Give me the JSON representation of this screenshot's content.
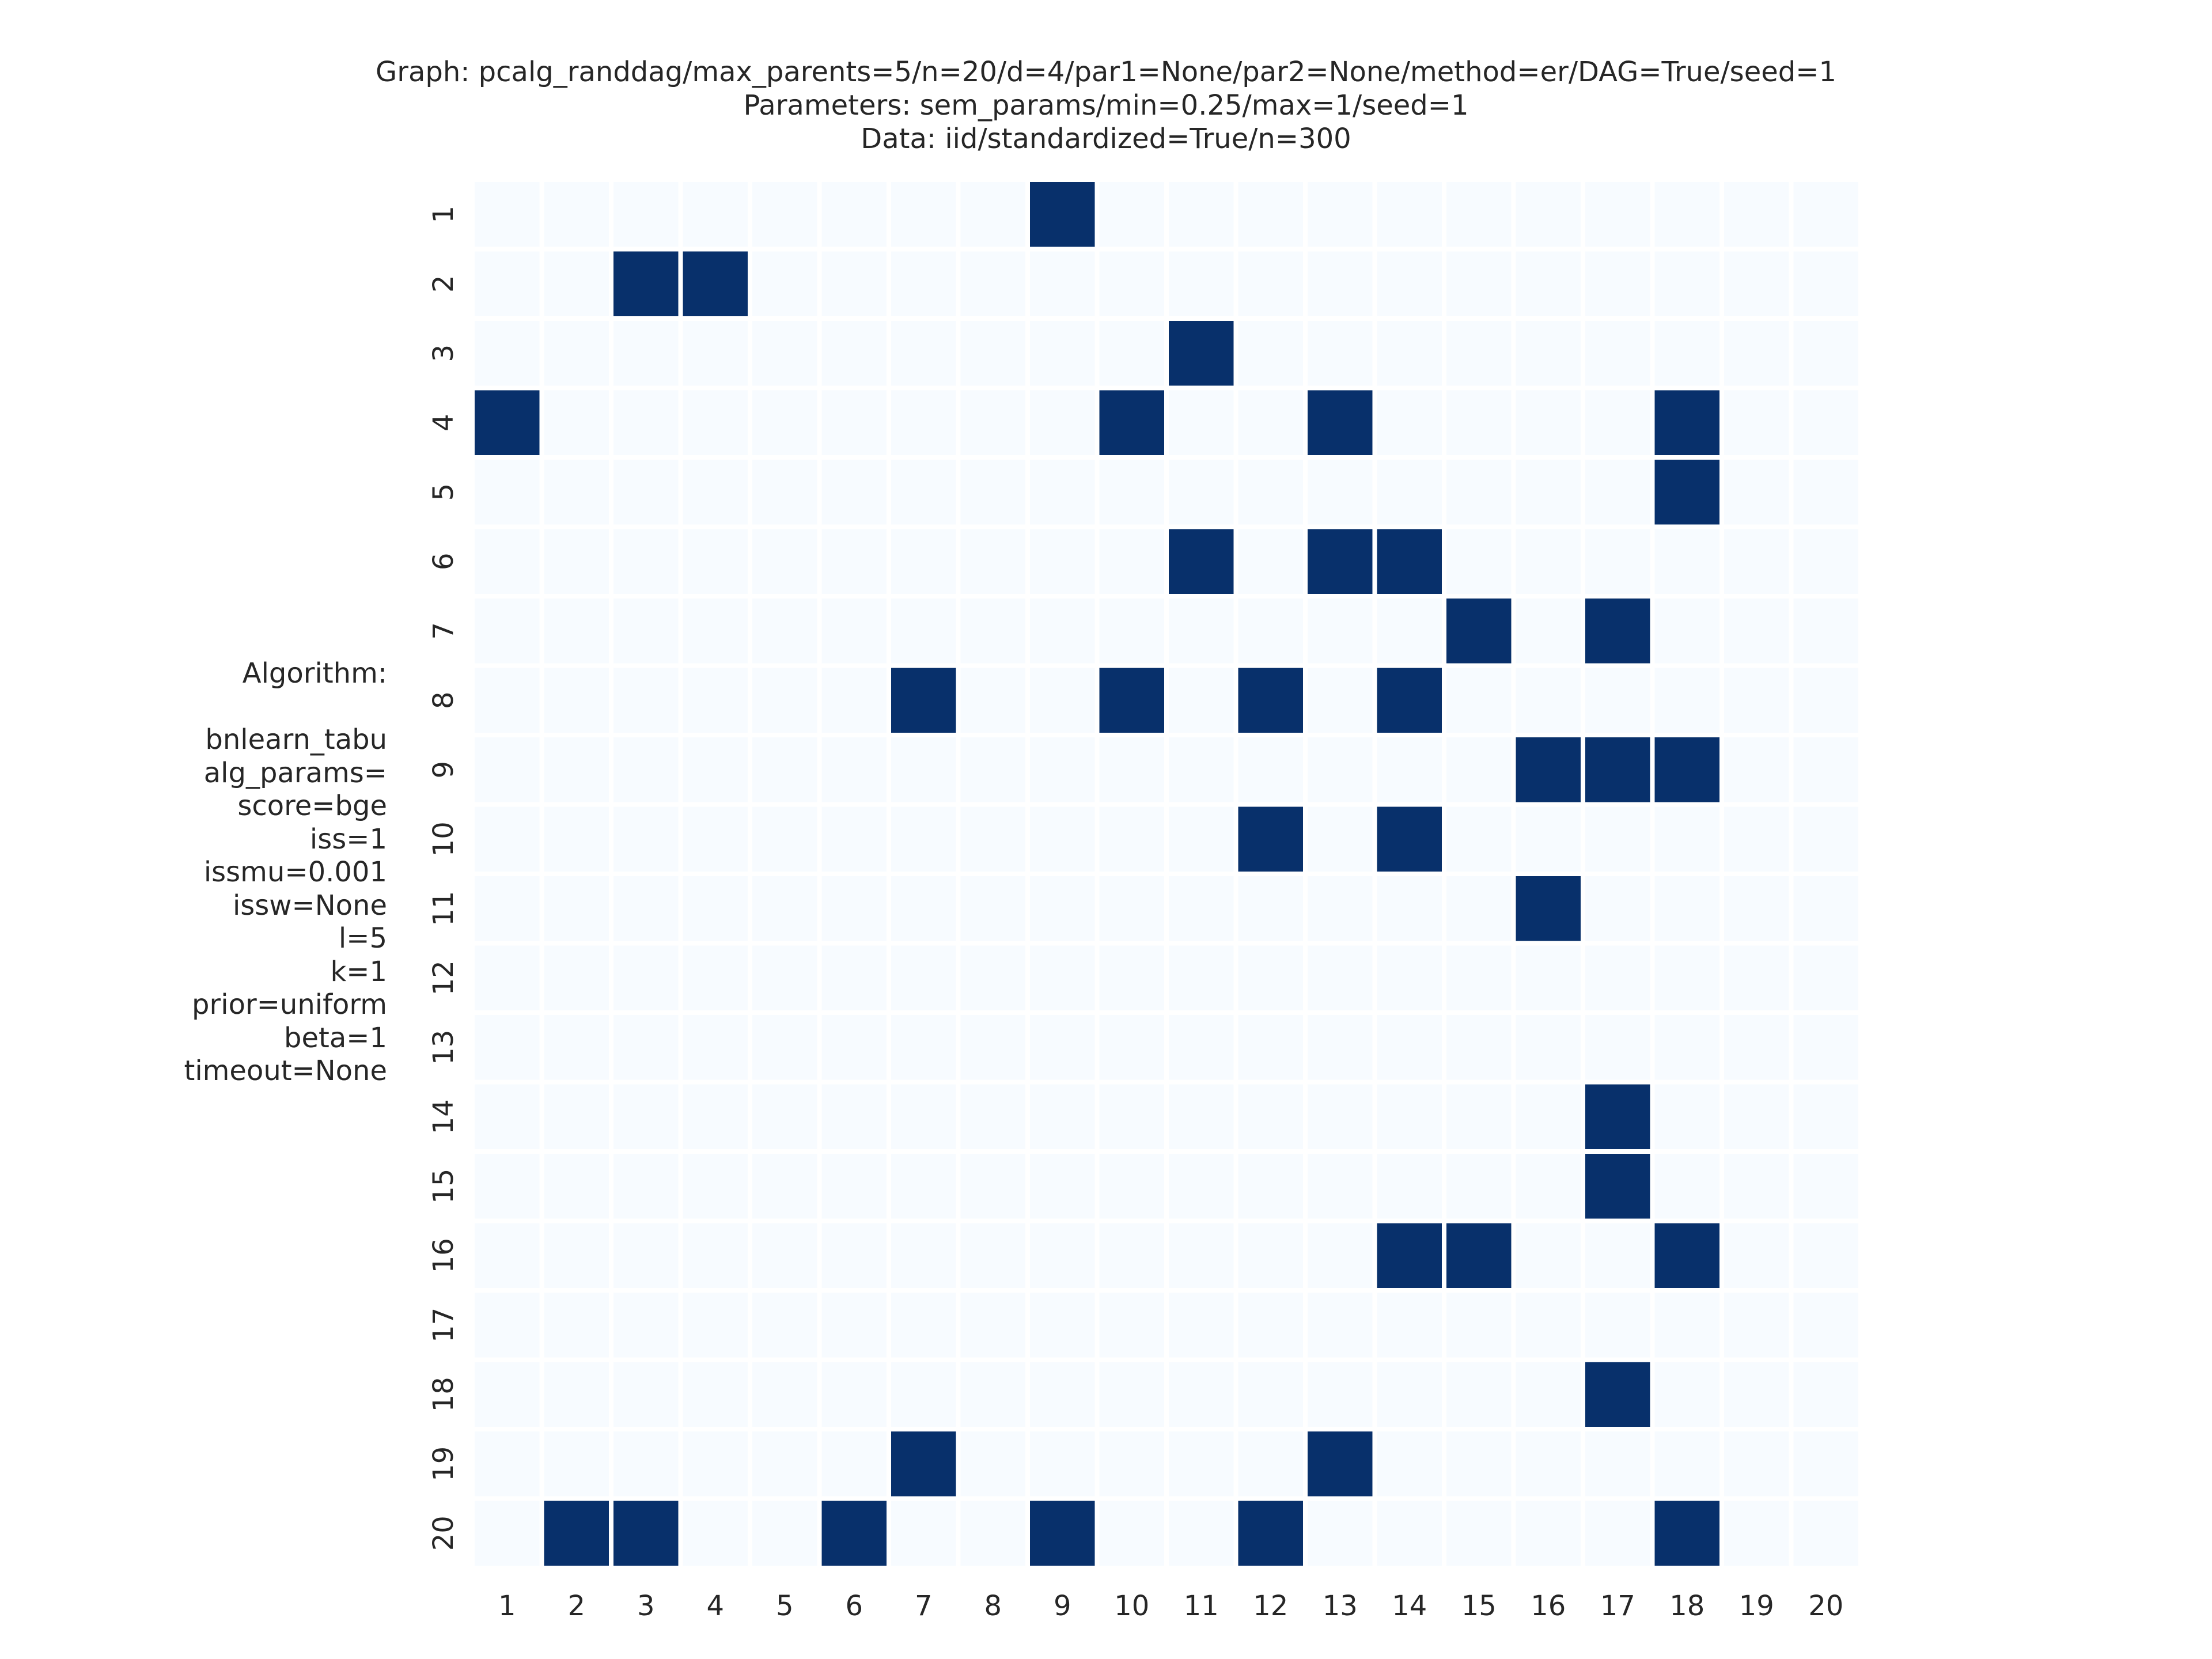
{
  "title_lines": [
    "Graph: pcalg_randdag/max_parents=5/n=20/d=4/par1=None/par2=None/method=er/DAG=True/seed=1",
    "Parameters: sem_params/min=0.25/max=1/seed=1",
    "Data: iid/standardized=True/n=300"
  ],
  "algorithm_lines": [
    "Algorithm:",
    "",
    "bnlearn_tabu",
    "alg_params=",
    "score=bge",
    "iss=1",
    "issmu=0.001",
    "issw=None",
    "l=5",
    "k=1",
    "prior=uniform",
    "beta=1",
    "timeout=None"
  ],
  "colors": {
    "empty_cell": "#f7fbff",
    "edge_cell": "#08306b",
    "grid_line": "#ffffff",
    "text": "#262626"
  },
  "chart_data": {
    "type": "heatmap",
    "row_labels": [
      "1",
      "2",
      "3",
      "4",
      "5",
      "6",
      "7",
      "8",
      "9",
      "10",
      "11",
      "12",
      "13",
      "14",
      "15",
      "16",
      "17",
      "18",
      "19",
      "20"
    ],
    "col_labels": [
      "1",
      "2",
      "3",
      "4",
      "5",
      "6",
      "7",
      "8",
      "9",
      "10",
      "11",
      "12",
      "13",
      "14",
      "15",
      "16",
      "17",
      "18",
      "19",
      "20"
    ],
    "value_range": [
      0,
      1
    ],
    "colorbar": false,
    "matrix": [
      [
        0,
        0,
        0,
        0,
        0,
        0,
        0,
        0,
        1,
        0,
        0,
        0,
        0,
        0,
        0,
        0,
        0,
        0,
        0,
        0
      ],
      [
        0,
        0,
        1,
        1,
        0,
        0,
        0,
        0,
        0,
        0,
        0,
        0,
        0,
        0,
        0,
        0,
        0,
        0,
        0,
        0
      ],
      [
        0,
        0,
        0,
        0,
        0,
        0,
        0,
        0,
        0,
        0,
        1,
        0,
        0,
        0,
        0,
        0,
        0,
        0,
        0,
        0
      ],
      [
        1,
        0,
        0,
        0,
        0,
        0,
        0,
        0,
        0,
        1,
        0,
        0,
        1,
        0,
        0,
        0,
        0,
        1,
        0,
        0
      ],
      [
        0,
        0,
        0,
        0,
        0,
        0,
        0,
        0,
        0,
        0,
        0,
        0,
        0,
        0,
        0,
        0,
        0,
        1,
        0,
        0
      ],
      [
        0,
        0,
        0,
        0,
        0,
        0,
        0,
        0,
        0,
        0,
        1,
        0,
        1,
        1,
        0,
        0,
        0,
        0,
        0,
        0
      ],
      [
        0,
        0,
        0,
        0,
        0,
        0,
        0,
        0,
        0,
        0,
        0,
        0,
        0,
        0,
        1,
        0,
        1,
        0,
        0,
        0
      ],
      [
        0,
        0,
        0,
        0,
        0,
        0,
        1,
        0,
        0,
        1,
        0,
        1,
        0,
        1,
        0,
        0,
        0,
        0,
        0,
        0
      ],
      [
        0,
        0,
        0,
        0,
        0,
        0,
        0,
        0,
        0,
        0,
        0,
        0,
        0,
        0,
        0,
        1,
        1,
        1,
        0,
        0
      ],
      [
        0,
        0,
        0,
        0,
        0,
        0,
        0,
        0,
        0,
        0,
        0,
        1,
        0,
        1,
        0,
        0,
        0,
        0,
        0,
        0
      ],
      [
        0,
        0,
        0,
        0,
        0,
        0,
        0,
        0,
        0,
        0,
        0,
        0,
        0,
        0,
        0,
        1,
        0,
        0,
        0,
        0
      ],
      [
        0,
        0,
        0,
        0,
        0,
        0,
        0,
        0,
        0,
        0,
        0,
        0,
        0,
        0,
        0,
        0,
        0,
        0,
        0,
        0
      ],
      [
        0,
        0,
        0,
        0,
        0,
        0,
        0,
        0,
        0,
        0,
        0,
        0,
        0,
        0,
        0,
        0,
        0,
        0,
        0,
        0
      ],
      [
        0,
        0,
        0,
        0,
        0,
        0,
        0,
        0,
        0,
        0,
        0,
        0,
        0,
        0,
        0,
        0,
        1,
        0,
        0,
        0
      ],
      [
        0,
        0,
        0,
        0,
        0,
        0,
        0,
        0,
        0,
        0,
        0,
        0,
        0,
        0,
        0,
        0,
        1,
        0,
        0,
        0
      ],
      [
        0,
        0,
        0,
        0,
        0,
        0,
        0,
        0,
        0,
        0,
        0,
        0,
        0,
        1,
        1,
        0,
        0,
        1,
        0,
        0
      ],
      [
        0,
        0,
        0,
        0,
        0,
        0,
        0,
        0,
        0,
        0,
        0,
        0,
        0,
        0,
        0,
        0,
        0,
        0,
        0,
        0
      ],
      [
        0,
        0,
        0,
        0,
        0,
        0,
        0,
        0,
        0,
        0,
        0,
        0,
        0,
        0,
        0,
        0,
        1,
        0,
        0,
        0
      ],
      [
        0,
        0,
        0,
        0,
        0,
        0,
        1,
        0,
        0,
        0,
        0,
        0,
        1,
        0,
        0,
        0,
        0,
        0,
        0,
        0
      ],
      [
        0,
        1,
        1,
        0,
        0,
        1,
        0,
        0,
        1,
        0,
        0,
        1,
        0,
        0,
        0,
        0,
        0,
        1,
        0,
        0
      ]
    ]
  }
}
